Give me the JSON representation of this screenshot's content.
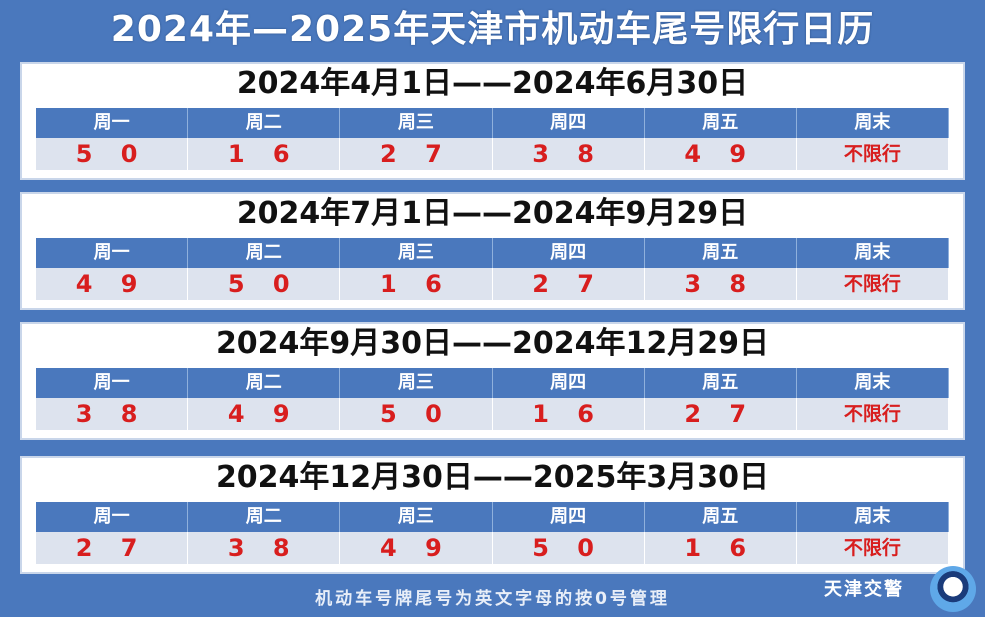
{
  "title": "2024年—2025年天津市机动车尾号限行日历",
  "weekdays": [
    "周一",
    "周二",
    "周三",
    "周四",
    "周五",
    "周末"
  ],
  "periods": [
    {
      "range": "2024年4月1日——2024年6月30日",
      "values": [
        "5 0",
        "1 6",
        "2 7",
        "3 8",
        "4 9",
        "不限行"
      ]
    },
    {
      "range": "2024年7月1日——2024年9月29日",
      "values": [
        "4 9",
        "5 0",
        "1 6",
        "2 7",
        "3 8",
        "不限行"
      ]
    },
    {
      "range": "2024年9月30日——2024年12月29日",
      "values": [
        "3 8",
        "4 9",
        "5 0",
        "1 6",
        "2 7",
        "不限行"
      ]
    },
    {
      "range": "2024年12月30日——2025年3月30日",
      "values": [
        "2 7",
        "3 8",
        "4 9",
        "5 0",
        "1 6",
        "不限行"
      ]
    }
  ],
  "footer_note": "机动车号牌尾号为英文字母的按0号管理",
  "brand": "天津交警",
  "colors": {
    "background": "#4a78bd",
    "header": "#4a78bd",
    "value_text": "#d81e1e",
    "value_bg": "#dde3ee"
  }
}
